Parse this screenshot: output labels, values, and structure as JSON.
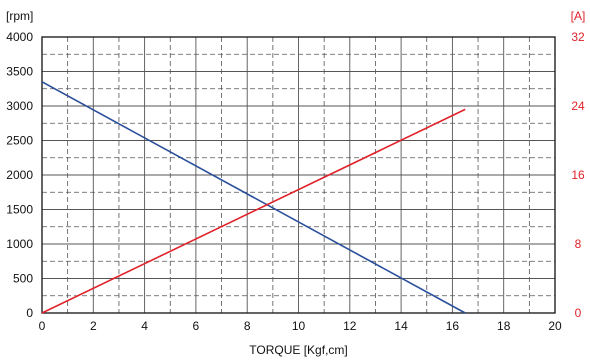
{
  "chart_data": {
    "type": "line",
    "xlabel": "TORQUE [Kgf,cm]",
    "y_left_unit": "[rpm]",
    "y_right_unit": "[A]",
    "xlim": [
      0,
      20
    ],
    "ylim_left": [
      0,
      4000
    ],
    "ylim_right": [
      0,
      32
    ],
    "x_ticks": [
      "0",
      "2",
      "4",
      "6",
      "8",
      "10",
      "12",
      "14",
      "16",
      "18",
      "20"
    ],
    "y_left_ticks": [
      "0",
      "500",
      "1000",
      "1500",
      "2000",
      "2500",
      "3000",
      "3500",
      "4000"
    ],
    "y_right_ticks": [
      "0",
      "8",
      "16",
      "24",
      "32"
    ],
    "grid": true,
    "colors": {
      "speed": "#2a4f9a",
      "current": "#e0222a",
      "right_axis_text": "#e0222a",
      "grid": "#555555",
      "axis": "#222222"
    },
    "series": [
      {
        "axis": "left",
        "x": [
          0,
          16.5
        ],
        "y": [
          3350,
          0
        ]
      },
      {
        "axis": "right",
        "x": [
          0,
          16.5
        ],
        "y": [
          0,
          23.6
        ]
      }
    ]
  }
}
